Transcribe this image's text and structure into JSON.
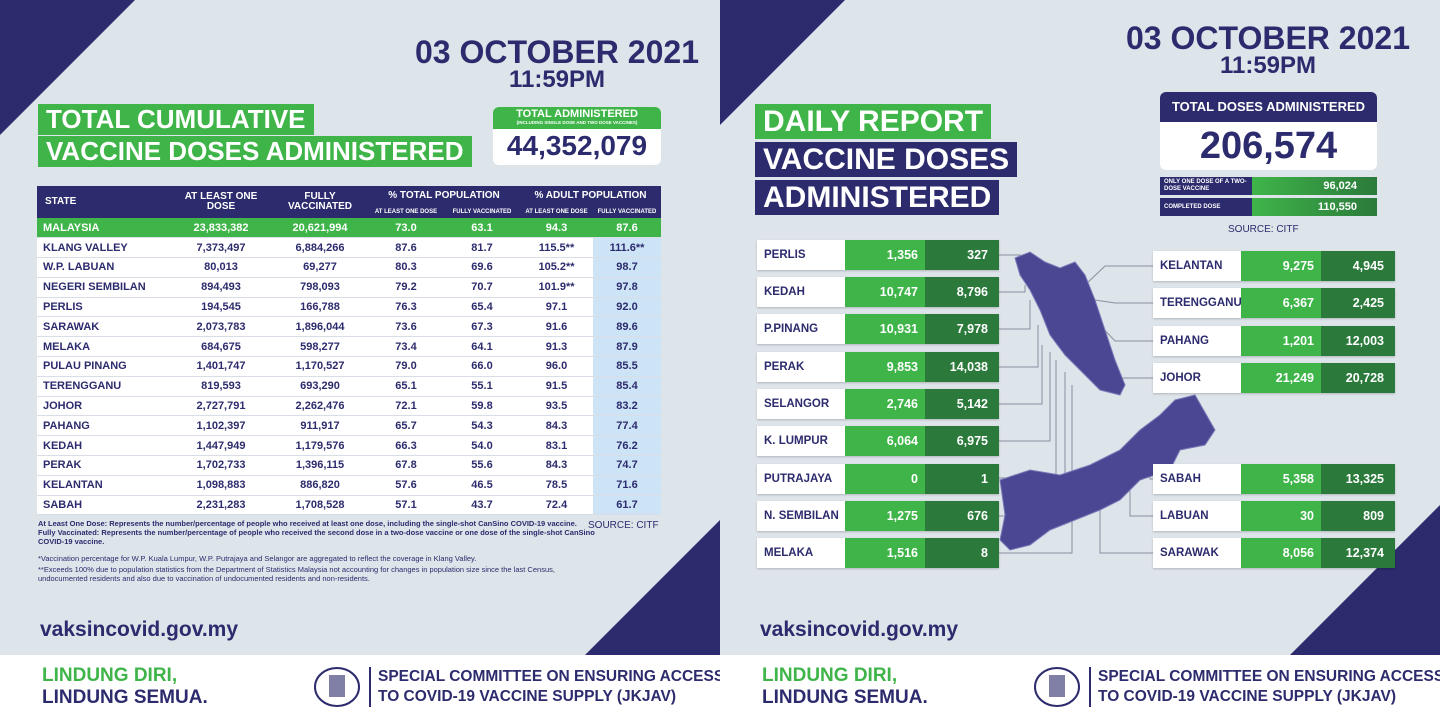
{
  "left": {
    "date": "03 OCTOBER 2021",
    "time": "11:59PM",
    "title": [
      "TOTAL CUMULATIVE",
      "VACCINE DOSES ADMINISTERED"
    ],
    "total": {
      "label": "TOTAL ADMINISTERED",
      "note": "(INCLUDING SINGLE DOSE AND TWO DOSE VACCINES)",
      "value": "44,352,079"
    },
    "table": {
      "columns": [
        "STATE",
        "AT LEAST ONE DOSE",
        "FULLY VACCINATED",
        "% TOTAL POPULATION",
        "% ADULT POPULATION"
      ],
      "subcolumns": [
        "AT LEAST ONE DOSE",
        "FULLY VACCINATED",
        "AT LEAST ONE DOSE",
        "FULLY VACCINATED"
      ],
      "rows": [
        [
          "MALAYSIA",
          "23,833,382",
          "20,621,994",
          "73.0",
          "63.1",
          "94.3",
          "87.6"
        ],
        [
          "KLANG VALLEY",
          "7,373,497",
          "6,884,266",
          "87.6",
          "81.7",
          "115.5**",
          "111.6**"
        ],
        [
          "W.P. LABUAN",
          "80,013",
          "69,277",
          "80.3",
          "69.6",
          "105.2**",
          "98.7"
        ],
        [
          "NEGERI SEMBILAN",
          "894,493",
          "798,093",
          "79.2",
          "70.7",
          "101.9**",
          "97.8"
        ],
        [
          "PERLIS",
          "194,545",
          "166,788",
          "76.3",
          "65.4",
          "97.1",
          "92.0"
        ],
        [
          "SARAWAK",
          "2,073,783",
          "1,896,044",
          "73.6",
          "67.3",
          "91.6",
          "89.6"
        ],
        [
          "MELAKA",
          "684,675",
          "598,277",
          "73.4",
          "64.1",
          "91.3",
          "87.9"
        ],
        [
          "PULAU PINANG",
          "1,401,747",
          "1,170,527",
          "79.0",
          "66.0",
          "96.0",
          "85.5"
        ],
        [
          "TERENGGANU",
          "819,593",
          "693,290",
          "65.1",
          "55.1",
          "91.5",
          "85.4"
        ],
        [
          "JOHOR",
          "2,727,791",
          "2,262,476",
          "72.1",
          "59.8",
          "93.5",
          "83.2"
        ],
        [
          "PAHANG",
          "1,102,397",
          "911,917",
          "65.7",
          "54.3",
          "84.3",
          "77.4"
        ],
        [
          "KEDAH",
          "1,447,949",
          "1,179,576",
          "66.3",
          "54.0",
          "83.1",
          "76.2"
        ],
        [
          "PERAK",
          "1,702,733",
          "1,396,115",
          "67.8",
          "55.6",
          "84.3",
          "74.7"
        ],
        [
          "KELANTAN",
          "1,098,883",
          "886,820",
          "57.6",
          "46.5",
          "78.5",
          "71.6"
        ],
        [
          "SABAH",
          "2,231,283",
          "1,708,528",
          "57.1",
          "43.7",
          "72.4",
          "61.7"
        ]
      ]
    },
    "notes": [
      "At Least One Dose: Represents the number/percentage of people who received at least one dose, including the single-shot CanSino COVID-19 vaccine.",
      "Fully Vaccinated: Represents the number/percentage of people who received the second dose in a two-dose vaccine or one dose of the single-shot CanSino COVID-19 vaccine.",
      "*Vaccination percentage for W.P. Kuala Lumpur, W.P. Putrajaya and Selangor are aggregated to reflect the coverage in Klang Valley.",
      "**Exceeds 100% due to population statistics from the Department of Statistics Malaysia not accounting for changes in population size since the last Census, undocumented residents and also due to vaccination of undocumented residents and non-residents."
    ],
    "source": "SOURCE: CITF",
    "website": "vaksincovid.gov.my"
  },
  "right": {
    "date": "03 OCTOBER 2021",
    "time": "11:59PM",
    "title": [
      "DAILY REPORT",
      "VACCINE DOSES",
      "ADMINISTERED"
    ],
    "total": {
      "label": "TOTAL DOSES ADMINISTERED",
      "value": "206,574"
    },
    "breakdown": [
      [
        "ONLY ONE DOSE OF A TWO-DOSE VACCINE",
        "96,024"
      ],
      [
        "COMPLETED DOSE",
        "110,550"
      ]
    ],
    "source": "SOURCE: CITF",
    "states_left": [
      [
        "PERLIS",
        "1,356",
        "327"
      ],
      [
        "KEDAH",
        "10,747",
        "8,796"
      ],
      [
        "P.PINANG",
        "10,931",
        "7,978"
      ],
      [
        "PERAK",
        "9,853",
        "14,038"
      ],
      [
        "SELANGOR",
        "2,746",
        "5,142"
      ],
      [
        "K. LUMPUR",
        "6,064",
        "6,975"
      ],
      [
        "PUTRAJAYA",
        "0",
        "1"
      ],
      [
        "N. SEMBILAN",
        "1,275",
        "676"
      ],
      [
        "MELAKA",
        "1,516",
        "8"
      ]
    ],
    "states_right": [
      [
        "KELANTAN",
        "9,275",
        "4,945"
      ],
      [
        "TERENGGANU",
        "6,367",
        "2,425"
      ],
      [
        "PAHANG",
        "1,201",
        "12,003"
      ],
      [
        "JOHOR",
        "21,249",
        "20,728"
      ],
      [
        "SABAH",
        "5,358",
        "13,325"
      ],
      [
        "LABUAN",
        "30",
        "809"
      ],
      [
        "SARAWAK",
        "8,056",
        "12,374"
      ]
    ],
    "website": "vaksincovid.gov.my"
  },
  "footer": {
    "slogan": [
      "LINDUNG DIRI,",
      "LINDUNG SEMUA."
    ],
    "committee": [
      "SPECIAL COMMITTEE ON ENSURING ACCESS",
      "TO COVID-19 VACCINE SUPPLY (JKJAV)"
    ]
  }
}
